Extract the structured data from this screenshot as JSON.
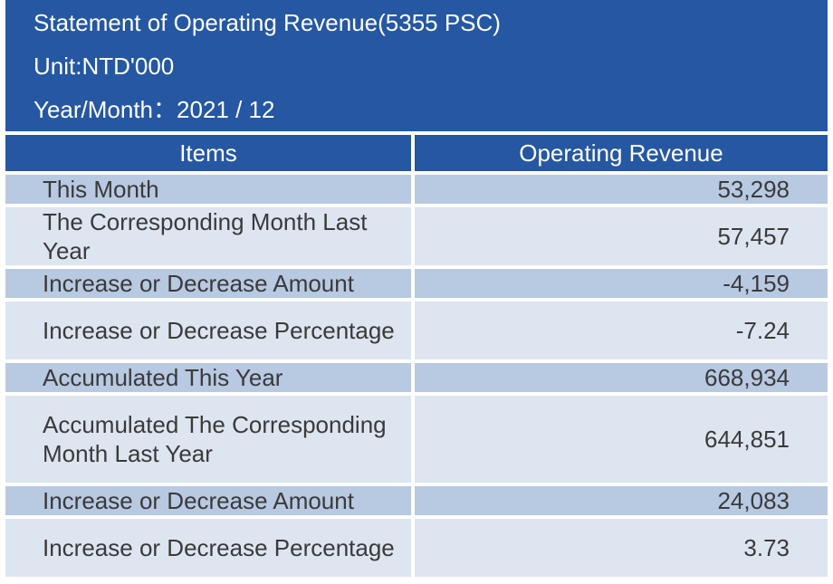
{
  "header": {
    "title": "Statement of Operating Revenue(5355 PSC)",
    "unit": "Unit:NTD'000",
    "period": "Year/Month：2021 / 12"
  },
  "table": {
    "columns": [
      "Items",
      "Operating Revenue"
    ],
    "rows": [
      {
        "item": "This Month",
        "value": "53,298"
      },
      {
        "item": "The Corresponding Month Last Year",
        "value": "57,457"
      },
      {
        "item": "Increase or Decrease Amount",
        "value": "-4,159"
      },
      {
        "item": "Increase or Decrease Percentage",
        "value": "-7.24"
      },
      {
        "item": "Accumulated This Year",
        "value": "668,934"
      },
      {
        "item": "Accumulated The Corresponding Month Last Year",
        "value": "644,851"
      },
      {
        "item": "Increase or Decrease Amount",
        "value": "24,083"
      },
      {
        "item": "Increase or Decrease Percentage",
        "value": "3.73"
      }
    ]
  },
  "colors": {
    "header_blue": "#2557a3",
    "row_dark": "#b8c9e2",
    "row_light": "#dde5f0"
  }
}
